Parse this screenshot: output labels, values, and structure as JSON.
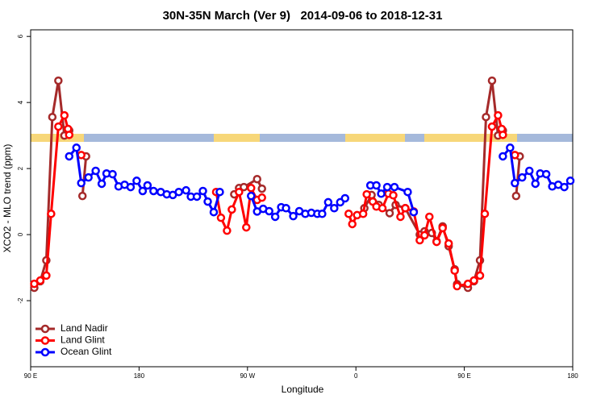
{
  "chart_data": {
    "type": "line",
    "title": "30N-35N March (Ver 9)   2014-09-06 to 2018-12-31",
    "x_label": "Longitude",
    "y_label": "XCO2 - MLO trend (ppm)",
    "xlim": [
      90,
      540
    ],
    "ylim": [
      -4,
      6.2
    ],
    "xticks": [
      {
        "value": 90,
        "label": "90 E"
      },
      180,
      {
        "value": 270,
        "label": "90 W"
      },
      {
        "value": 360,
        "label": "0"
      },
      {
        "value": 450,
        "label": "90 E"
      },
      {
        "value": 540,
        "label": "180"
      }
    ],
    "yticks": [
      -2,
      0,
      2,
      4,
      6
    ],
    "legend": "bottom-left",
    "series": [
      {
        "name": "Land Nadir",
        "color": "#a52a2a",
        "x": [
          93,
          98,
          103,
          108,
          113,
          118,
          122,
          null,
          133,
          136,
          null,
          259,
          263,
          267,
          278,
          282,
          null,
          367,
          373,
          379,
          388,
          393,
          401,
          413,
          417,
          423,
          427,
          432,
          437,
          442,
          444,
          453,
          458,
          463,
          468,
          473,
          478,
          482,
          null,
          493,
          496
        ],
        "values": [
          -1.61,
          -1.41,
          -0.78,
          3.56,
          4.66,
          3.0,
          3.15,
          null,
          1.17,
          2.37,
          null,
          1.22,
          1.41,
          1.44,
          1.68,
          1.39,
          null,
          0.8,
          1.2,
          0.9,
          0.65,
          0.9,
          0.8,
          0.0,
          0.1,
          0.05,
          -0.2,
          0.25,
          -0.35,
          -1.05,
          -1.5,
          -1.61,
          -1.41,
          -0.78,
          3.56,
          4.66,
          3.0,
          3.15,
          null,
          1.17,
          2.37
        ]
      },
      {
        "name": "Land Glint",
        "color": "#ff0000",
        "x": [
          93,
          98,
          103,
          107,
          113,
          118,
          121,
          122,
          null,
          132,
          null,
          244,
          248,
          253,
          257,
          263,
          269,
          273,
          278,
          282,
          null,
          354,
          357,
          361,
          366,
          369,
          374,
          377,
          382,
          387,
          391,
          397,
          401,
          408,
          413,
          417,
          421,
          427,
          432,
          437,
          442,
          444,
          453,
          458,
          463,
          467,
          473,
          478,
          481,
          482,
          null,
          492
        ],
        "values": [
          -1.49,
          -1.39,
          -1.24,
          0.63,
          3.27,
          3.61,
          3.2,
          3.02,
          null,
          2.41,
          null,
          1.29,
          0.51,
          0.12,
          0.76,
          1.29,
          0.22,
          1.41,
          1.05,
          1.12,
          null,
          0.63,
          0.32,
          0.59,
          0.63,
          1.22,
          1.0,
          0.85,
          0.8,
          1.24,
          1.19,
          0.54,
          0.8,
          0.7,
          -0.17,
          -0.02,
          0.54,
          -0.22,
          0.2,
          -0.27,
          -1.09,
          -1.56,
          -1.49,
          -1.39,
          -1.24,
          0.63,
          3.27,
          3.61,
          3.2,
          3.02,
          null,
          2.41
        ]
      },
      {
        "name": "Ocean Glint",
        "color": "#0000ff",
        "x": [
          122,
          128,
          132,
          138,
          144,
          149,
          153,
          158,
          163,
          168,
          173,
          178,
          183,
          187,
          192,
          198,
          203,
          208,
          213,
          219,
          223,
          228,
          233,
          237,
          242,
          247,
          null,
          273,
          278,
          283,
          288,
          293,
          298,
          302,
          308,
          313,
          318,
          323,
          328,
          332,
          337,
          342,
          347,
          351,
          null,
          372,
          377,
          381,
          386,
          392,
          403,
          408,
          null,
          482,
          488,
          492,
          498,
          504,
          509,
          513,
          518,
          523,
          528,
          533,
          538
        ],
        "values": [
          2.37,
          2.63,
          1.56,
          1.73,
          1.93,
          1.54,
          1.85,
          1.83,
          1.46,
          1.51,
          1.44,
          1.63,
          1.32,
          1.49,
          1.32,
          1.29,
          1.22,
          1.2,
          1.29,
          1.34,
          1.15,
          1.15,
          1.32,
          1.0,
          0.68,
          1.29,
          null,
          1.17,
          0.7,
          0.78,
          0.71,
          0.54,
          0.83,
          0.8,
          0.56,
          0.71,
          0.63,
          0.66,
          0.63,
          0.63,
          0.98,
          0.8,
          0.98,
          1.1,
          null,
          1.49,
          1.49,
          1.24,
          1.44,
          1.44,
          1.29,
          0.68,
          null,
          2.37,
          2.63,
          1.56,
          1.73,
          1.93,
          1.54,
          1.85,
          1.83,
          1.46,
          1.51,
          1.44,
          1.63
        ]
      }
    ]
  }
}
